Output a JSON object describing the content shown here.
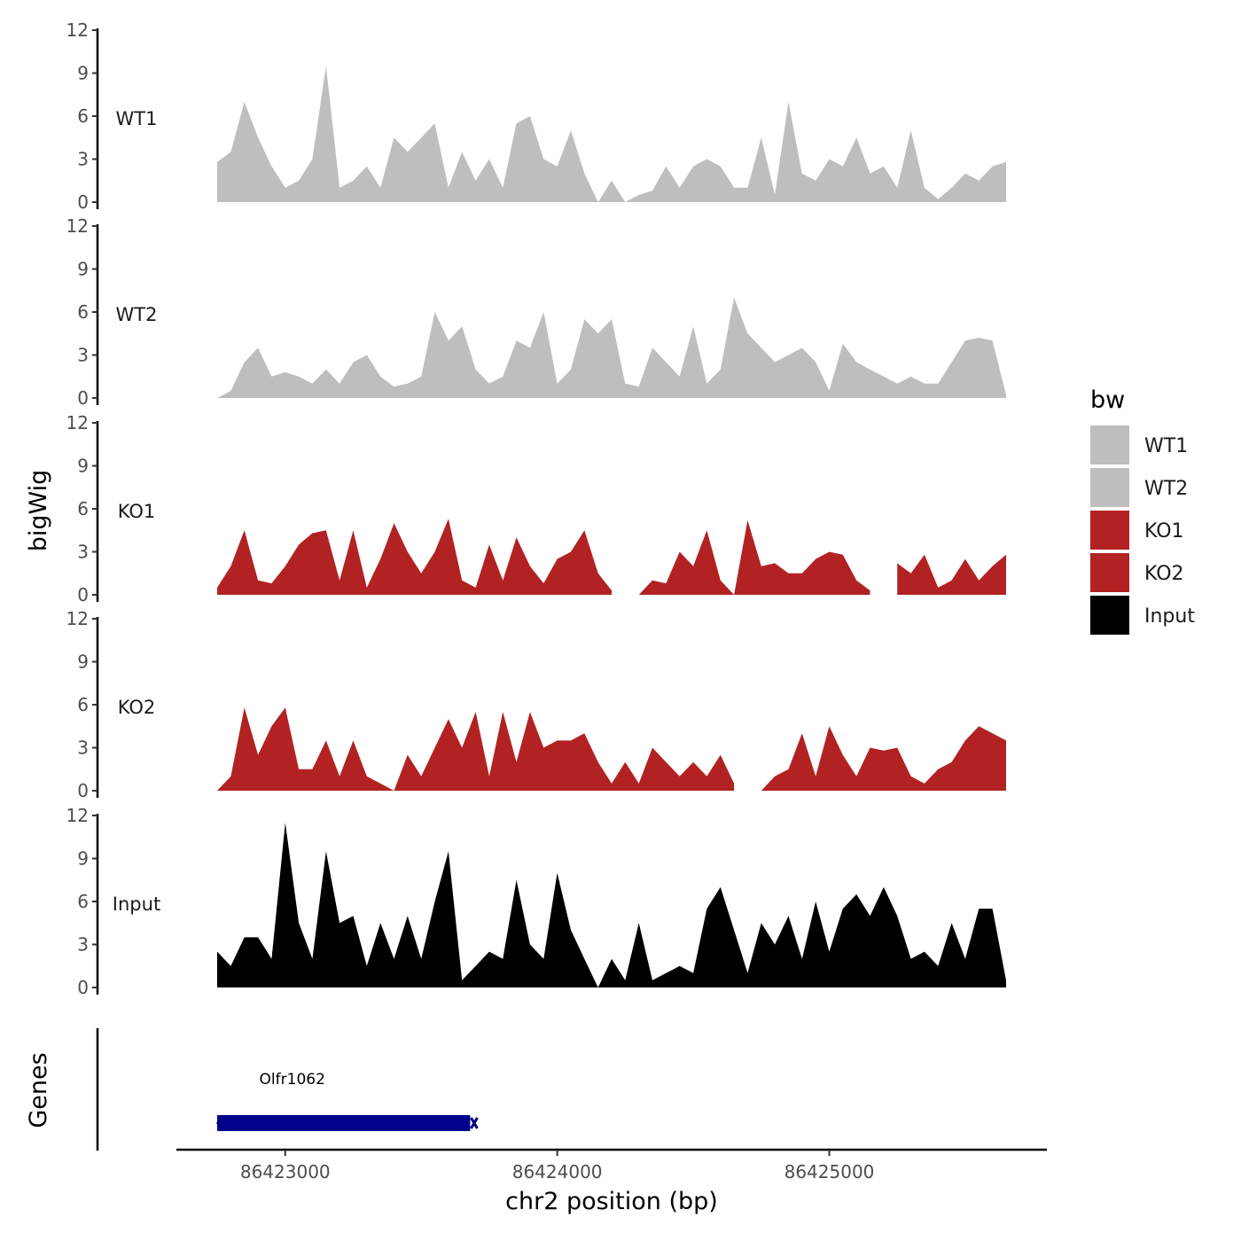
{
  "chart_data": {
    "type": "area",
    "title": "",
    "xlabel": "chr2 position (bp)",
    "ylabel": "bigWig",
    "genes_label": "Genes",
    "x_range": [
      86422600,
      86425800
    ],
    "x_ticks": [
      86423000,
      86424000,
      86425000
    ],
    "x_tick_labels": [
      "86423000",
      "86424000",
      "86425000"
    ],
    "y_range": [
      0,
      12
    ],
    "y_ticks": [
      0,
      3,
      6,
      9,
      12
    ],
    "y_tick_labels": [
      "0",
      "3",
      "6",
      "9",
      "12"
    ],
    "legend": {
      "title": "bw",
      "position": "right",
      "entries": [
        {
          "label": "WT1",
          "color": "#bebebe"
        },
        {
          "label": "WT2",
          "color": "#bebebe"
        },
        {
          "label": "KO1",
          "color": "#b22222"
        },
        {
          "label": "KO2",
          "color": "#b22222"
        },
        {
          "label": "Input",
          "color": "#000000"
        }
      ]
    },
    "x": [
      86422750,
      86422800,
      86422850,
      86422900,
      86422950,
      86423000,
      86423050,
      86423100,
      86423150,
      86423200,
      86423250,
      86423300,
      86423350,
      86423400,
      86423450,
      86423500,
      86423550,
      86423600,
      86423650,
      86423700,
      86423750,
      86423800,
      86423850,
      86423900,
      86423950,
      86424000,
      86424050,
      86424100,
      86424150,
      86424200,
      86424250,
      86424300,
      86424350,
      86424400,
      86424450,
      86424500,
      86424550,
      86424600,
      86424650,
      86424700,
      86424750,
      86424800,
      86424850,
      86424900,
      86424950,
      86425000,
      86425050,
      86425100,
      86425150,
      86425200,
      86425250,
      86425300,
      86425350,
      86425400,
      86425450,
      86425500,
      86425550,
      86425600,
      86425650
    ],
    "series": [
      {
        "name": "WT1",
        "color": "#bebebe",
        "values": [
          2.8,
          3.5,
          7.0,
          4.5,
          2.5,
          1.0,
          1.5,
          3.0,
          9.5,
          1.0,
          1.5,
          2.5,
          1.0,
          4.5,
          3.5,
          4.5,
          5.5,
          1.0,
          3.5,
          1.5,
          3.0,
          1.0,
          5.5,
          6.0,
          3.0,
          2.5,
          5.0,
          2.0,
          0.0,
          1.5,
          0.0,
          0.5,
          0.8,
          2.5,
          1.0,
          2.5,
          3.0,
          2.5,
          1.0,
          1.0,
          4.5,
          0.5,
          7.0,
          2.0,
          1.5,
          3.0,
          2.5,
          4.5,
          2.0,
          2.5,
          1.0,
          5.0,
          1.0,
          0.2,
          1.0,
          2.0,
          1.5,
          2.5,
          2.8
        ]
      },
      {
        "name": "WT2",
        "color": "#bebebe",
        "values": [
          0.0,
          0.5,
          2.5,
          3.5,
          1.5,
          1.8,
          1.5,
          1.0,
          2.0,
          1.0,
          2.5,
          3.0,
          1.5,
          0.8,
          1.0,
          1.5,
          6.0,
          4.0,
          5.0,
          2.0,
          1.0,
          1.5,
          4.0,
          3.5,
          6.0,
          1.0,
          2.0,
          5.5,
          4.5,
          5.5,
          1.0,
          0.8,
          3.5,
          2.5,
          1.5,
          5.0,
          1.0,
          2.0,
          7.0,
          4.5,
          3.5,
          2.5,
          3.0,
          3.5,
          2.5,
          0.5,
          3.8,
          2.5,
          2.0,
          1.5,
          1.0,
          1.5,
          1.0,
          1.0,
          2.5,
          4.0,
          4.2,
          4.0,
          0.2
        ]
      },
      {
        "name": "KO1",
        "color": "#b22222",
        "values": [
          0.5,
          2.0,
          4.5,
          1.0,
          0.8,
          2.0,
          3.5,
          4.3,
          4.5,
          1.0,
          4.5,
          0.5,
          2.5,
          5.0,
          3.0,
          1.5,
          3.0,
          5.3,
          1.0,
          0.5,
          3.5,
          1.0,
          4.0,
          2.0,
          0.8,
          2.5,
          3.0,
          4.5,
          1.5,
          0.3,
          null,
          0.0,
          1.0,
          0.8,
          3.0,
          2.0,
          4.5,
          1.0,
          0.0,
          5.2,
          2.0,
          2.2,
          1.5,
          1.5,
          2.5,
          3.0,
          2.8,
          1.0,
          0.3,
          null,
          2.2,
          1.5,
          2.8,
          0.5,
          1.0,
          2.5,
          1.0,
          2.0,
          2.8
        ]
      },
      {
        "name": "KO2",
        "color": "#b22222",
        "values": [
          0.0,
          1.0,
          5.8,
          2.5,
          4.5,
          5.8,
          1.5,
          1.5,
          3.5,
          1.0,
          3.5,
          1.0,
          0.5,
          0.0,
          2.5,
          1.0,
          3.0,
          5.0,
          3.0,
          5.5,
          1.0,
          5.5,
          2.0,
          5.5,
          3.0,
          3.5,
          3.5,
          4.0,
          2.0,
          0.5,
          2.0,
          0.5,
          3.0,
          2.0,
          1.0,
          2.0,
          1.0,
          2.5,
          0.5,
          null,
          0.0,
          1.0,
          1.5,
          4.0,
          1.0,
          4.5,
          2.5,
          1.0,
          3.0,
          2.8,
          3.0,
          1.0,
          0.5,
          1.5,
          2.0,
          3.5,
          4.5,
          4.0,
          3.5
        ]
      },
      {
        "name": "Input",
        "color": "#000000",
        "values": [
          2.5,
          1.5,
          3.5,
          3.5,
          2.0,
          11.5,
          4.5,
          2.0,
          9.5,
          4.5,
          5.0,
          1.5,
          4.5,
          2.0,
          5.0,
          2.0,
          6.0,
          9.5,
          0.5,
          1.5,
          2.5,
          2.0,
          7.5,
          3.0,
          2.0,
          8.0,
          4.0,
          2.0,
          0.0,
          2.0,
          0.5,
          4.5,
          0.5,
          1.0,
          1.5,
          1.0,
          5.5,
          7.0,
          4.0,
          1.0,
          4.5,
          3.0,
          5.0,
          2.0,
          6.0,
          2.5,
          5.5,
          6.5,
          5.0,
          7.0,
          5.0,
          2.0,
          2.5,
          1.5,
          4.5,
          2.0,
          5.5,
          5.5,
          0.5
        ]
      }
    ],
    "genes": [
      {
        "name": "Olfr1062",
        "start": 86422750,
        "end": 86423680,
        "strand": "-",
        "color": "#00008b"
      }
    ]
  }
}
